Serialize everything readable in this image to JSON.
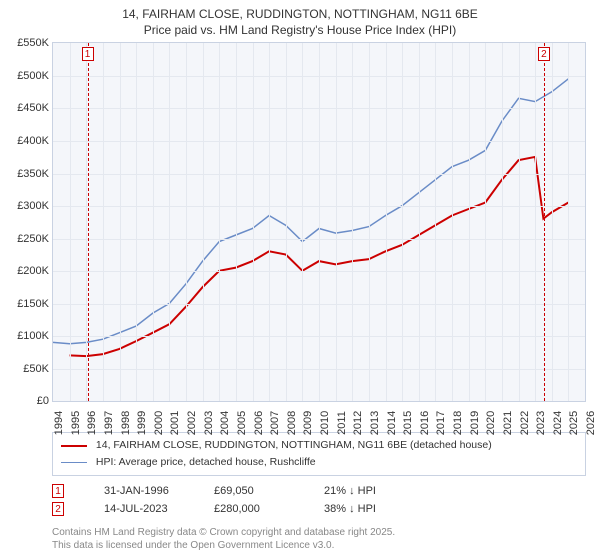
{
  "title": {
    "line1": "14, FAIRHAM CLOSE, RUDDINGTON, NOTTINGHAM, NG11 6BE",
    "line2": "Price paid vs. HM Land Registry's House Price Index (HPI)",
    "fontsize": 12
  },
  "chart": {
    "type": "line",
    "background_color": "#f4f6fa",
    "border_color": "#c9d2e2",
    "grid_color": "#e4e8ef",
    "xlim": [
      1994,
      2026
    ],
    "ylim": [
      0,
      550000
    ],
    "ytick_step": 50000,
    "yticks_labels": [
      "£0",
      "£50K",
      "£100K",
      "£150K",
      "£200K",
      "£250K",
      "£300K",
      "£350K",
      "£400K",
      "£450K",
      "£500K",
      "£550K"
    ],
    "xticks": [
      1994,
      1995,
      1996,
      1997,
      1998,
      1999,
      2000,
      2001,
      2002,
      2003,
      2004,
      2005,
      2006,
      2007,
      2008,
      2009,
      2010,
      2011,
      2012,
      2013,
      2014,
      2015,
      2016,
      2017,
      2018,
      2019,
      2020,
      2021,
      2022,
      2023,
      2024,
      2025,
      2026
    ],
    "series": [
      {
        "name": "property",
        "color": "#cc0000",
        "width": 2,
        "data": [
          [
            1995,
            70000
          ],
          [
            1996,
            69050
          ],
          [
            1997,
            72000
          ],
          [
            1998,
            80000
          ],
          [
            1999,
            92000
          ],
          [
            2000,
            105000
          ],
          [
            2001,
            118000
          ],
          [
            2002,
            145000
          ],
          [
            2003,
            175000
          ],
          [
            2004,
            200000
          ],
          [
            2005,
            205000
          ],
          [
            2006,
            215000
          ],
          [
            2007,
            230000
          ],
          [
            2008,
            225000
          ],
          [
            2009,
            200000
          ],
          [
            2010,
            215000
          ],
          [
            2011,
            210000
          ],
          [
            2012,
            215000
          ],
          [
            2013,
            218000
          ],
          [
            2014,
            230000
          ],
          [
            2015,
            240000
          ],
          [
            2016,
            255000
          ],
          [
            2017,
            270000
          ],
          [
            2018,
            285000
          ],
          [
            2019,
            295000
          ],
          [
            2020,
            305000
          ],
          [
            2021,
            340000
          ],
          [
            2022,
            370000
          ],
          [
            2023,
            375000
          ],
          [
            2023.5,
            280000
          ],
          [
            2024,
            290000
          ],
          [
            2025,
            305000
          ]
        ]
      },
      {
        "name": "hpi",
        "color": "#6a8cc7",
        "width": 1.5,
        "data": [
          [
            1994,
            90000
          ],
          [
            1995,
            88000
          ],
          [
            1996,
            90000
          ],
          [
            1997,
            95000
          ],
          [
            1998,
            105000
          ],
          [
            1999,
            115000
          ],
          [
            2000,
            135000
          ],
          [
            2001,
            150000
          ],
          [
            2002,
            180000
          ],
          [
            2003,
            215000
          ],
          [
            2004,
            245000
          ],
          [
            2005,
            255000
          ],
          [
            2006,
            265000
          ],
          [
            2007,
            285000
          ],
          [
            2008,
            270000
          ],
          [
            2009,
            245000
          ],
          [
            2010,
            265000
          ],
          [
            2011,
            258000
          ],
          [
            2012,
            262000
          ],
          [
            2013,
            268000
          ],
          [
            2014,
            285000
          ],
          [
            2015,
            300000
          ],
          [
            2016,
            320000
          ],
          [
            2017,
            340000
          ],
          [
            2018,
            360000
          ],
          [
            2019,
            370000
          ],
          [
            2020,
            385000
          ],
          [
            2021,
            430000
          ],
          [
            2022,
            465000
          ],
          [
            2023,
            460000
          ],
          [
            2024,
            475000
          ],
          [
            2025,
            495000
          ]
        ]
      }
    ],
    "markers": [
      {
        "id": "1",
        "x": 1996.08,
        "date": "31-JAN-1996",
        "price": "£69,050",
        "diff": "21% ↓ HPI"
      },
      {
        "id": "2",
        "x": 2023.53,
        "date": "14-JUL-2023",
        "price": "£280,000",
        "diff": "38% ↓ HPI"
      }
    ]
  },
  "legend": {
    "items": [
      {
        "color": "#cc0000",
        "width": 2,
        "label": "14, FAIRHAM CLOSE, RUDDINGTON, NOTTINGHAM, NG11 6BE (detached house)"
      },
      {
        "color": "#6a8cc7",
        "width": 1.5,
        "label": "HPI: Average price, detached house, Rushcliffe"
      }
    ]
  },
  "footer": {
    "line1": "Contains HM Land Registry data © Crown copyright and database right 2025.",
    "line2": "This data is licensed under the Open Government Licence v3.0."
  }
}
